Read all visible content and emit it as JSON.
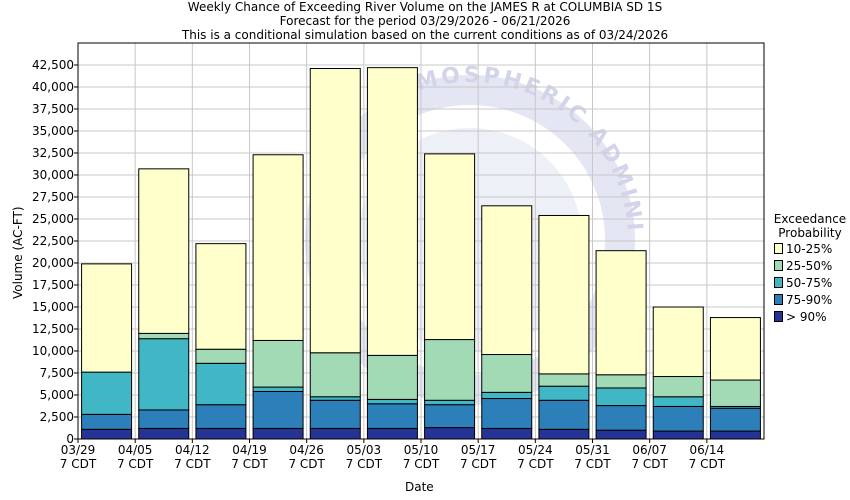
{
  "titles": {
    "line1": "Weekly Chance of Exceeding River Volume on the JAMES R at COLUMBIA SD 1S",
    "line2": "Forecast for the period 03/29/2026 - 06/21/2026",
    "line3": "This is a conditional simulation based on the current conditions as of 03/24/2026"
  },
  "watermark": "ATMOSPHERIC ADMINISTRATION",
  "legend": {
    "title_line1": "Exceedance",
    "title_line2": "Probability",
    "items": [
      {
        "label": "10-25%",
        "color": "#ffffcc"
      },
      {
        "label": "25-50%",
        "color": "#a1dab4"
      },
      {
        "label": "50-75%",
        "color": "#41b6c4"
      },
      {
        "label": "75-90%",
        "color": "#2c7fb8"
      },
      {
        "label": "> 90%",
        "color": "#253494"
      }
    ]
  },
  "chart_data": {
    "type": "bar",
    "stacked": true,
    "xlabel": "Date",
    "ylabel": "Volume (AC-FT)",
    "ylim": [
      0,
      45000
    ],
    "yticks": [
      0,
      2500,
      5000,
      7500,
      10000,
      12500,
      15000,
      17500,
      20000,
      22500,
      25000,
      27500,
      30000,
      32500,
      35000,
      37500,
      40000,
      42500
    ],
    "ytick_labels": [
      "0",
      "2,500",
      "5,000",
      "7,500",
      "10,000",
      "12,500",
      "15,000",
      "17,500",
      "20,000",
      "22,500",
      "25,000",
      "27,500",
      "30,000",
      "32,500",
      "35,000",
      "37,500",
      "40,000",
      "42,500"
    ],
    "xticks": [
      {
        "date": "03/29",
        "tz": "7 CDT"
      },
      {
        "date": "04/05",
        "tz": "7 CDT"
      },
      {
        "date": "04/12",
        "tz": "7 CDT"
      },
      {
        "date": "04/19",
        "tz": "7 CDT"
      },
      {
        "date": "04/26",
        "tz": "7 CDT"
      },
      {
        "date": "05/03",
        "tz": "7 CDT"
      },
      {
        "date": "05/10",
        "tz": "7 CDT"
      },
      {
        "date": "05/17",
        "tz": "7 CDT"
      },
      {
        "date": "05/24",
        "tz": "7 CDT"
      },
      {
        "date": "05/31",
        "tz": "7 CDT"
      },
      {
        "date": "06/07",
        "tz": "7 CDT"
      },
      {
        "date": "06/14",
        "tz": "7 CDT"
      }
    ],
    "grid": true,
    "legend_position": "right",
    "series_order_bottom_to_top": [
      "> 90%",
      "75-90%",
      "50-75%",
      "25-50%",
      "10-25%"
    ],
    "bars": [
      {
        "week": "03/29",
        "boundaries": [
          1100,
          2800,
          7600,
          7600,
          19900
        ]
      },
      {
        "week": "04/05",
        "boundaries": [
          1200,
          3300,
          11400,
          12000,
          30700
        ]
      },
      {
        "week": "04/12",
        "boundaries": [
          1200,
          3900,
          8600,
          10200,
          22200
        ]
      },
      {
        "week": "04/19",
        "boundaries": [
          1200,
          5400,
          5900,
          11200,
          32300
        ]
      },
      {
        "week": "04/26",
        "boundaries": [
          1200,
          4400,
          4800,
          9800,
          42100
        ]
      },
      {
        "week": "05/03",
        "boundaries": [
          1200,
          4000,
          4500,
          9500,
          42200
        ]
      },
      {
        "week": "05/10",
        "boundaries": [
          1300,
          3900,
          4400,
          11300,
          32400
        ]
      },
      {
        "week": "05/17",
        "boundaries": [
          1200,
          4600,
          5300,
          9600,
          26500
        ]
      },
      {
        "week": "05/24",
        "boundaries": [
          1100,
          4400,
          6000,
          7400,
          25400
        ]
      },
      {
        "week": "05/31",
        "boundaries": [
          1000,
          3800,
          5800,
          7300,
          21400
        ]
      },
      {
        "week": "06/07",
        "boundaries": [
          900,
          3700,
          4800,
          7100,
          15000
        ]
      },
      {
        "week": "06/14",
        "boundaries": [
          900,
          3500,
          3700,
          6700,
          13800
        ]
      }
    ]
  }
}
